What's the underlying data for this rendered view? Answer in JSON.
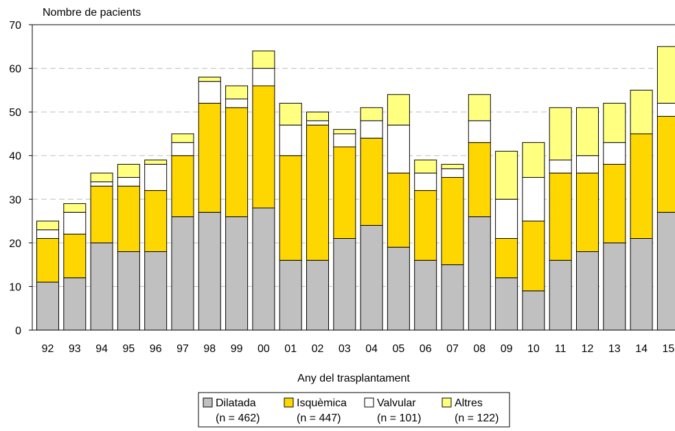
{
  "chart_data": {
    "type": "bar",
    "stacked": true,
    "ylabel": "Nombre de pacients",
    "xlabel": "Any del trasplantament",
    "ylim": [
      0,
      70
    ],
    "yticks": [
      0,
      10,
      20,
      30,
      40,
      50,
      60,
      70
    ],
    "grid": "horizontal dashed",
    "legend_placement": "bottom-center",
    "categories": [
      "92",
      "93",
      "94",
      "95",
      "96",
      "97",
      "98",
      "99",
      "00",
      "01",
      "02",
      "03",
      "04",
      "05",
      "06",
      "07",
      "08",
      "09",
      "10",
      "11",
      "12",
      "13",
      "14",
      "15"
    ],
    "series": [
      {
        "name": "Dilatada",
        "legend_note": "(n = 462)",
        "color": "#c0c0c0",
        "values": [
          11,
          12,
          20,
          18,
          18,
          26,
          27,
          26,
          28,
          16,
          16,
          21,
          24,
          19,
          16,
          15,
          26,
          12,
          9,
          16,
          18,
          20,
          21,
          27
        ]
      },
      {
        "name": "Isquèmica",
        "legend_note": "(n = 447)",
        "color": "#ffd700",
        "values": [
          10,
          10,
          13,
          15,
          14,
          14,
          25,
          25,
          28,
          24,
          31,
          21,
          20,
          17,
          16,
          20,
          17,
          9,
          16,
          20,
          18,
          18,
          24,
          22
        ]
      },
      {
        "name": "Valvular",
        "legend_note": "(n = 101)",
        "color": "#ffffff",
        "values": [
          2,
          5,
          1,
          2,
          6,
          3,
          5,
          2,
          4,
          7,
          1,
          3,
          4,
          11,
          4,
          2,
          5,
          9,
          10,
          3,
          4,
          5,
          0,
          3
        ]
      },
      {
        "name": "Altres",
        "legend_note": "(n = 122)",
        "color": "#ffff80",
        "values": [
          2,
          2,
          2,
          3,
          1,
          2,
          1,
          3,
          4,
          5,
          2,
          1,
          3,
          7,
          3,
          1,
          6,
          11,
          8,
          12,
          11,
          9,
          10,
          13
        ]
      }
    ]
  }
}
